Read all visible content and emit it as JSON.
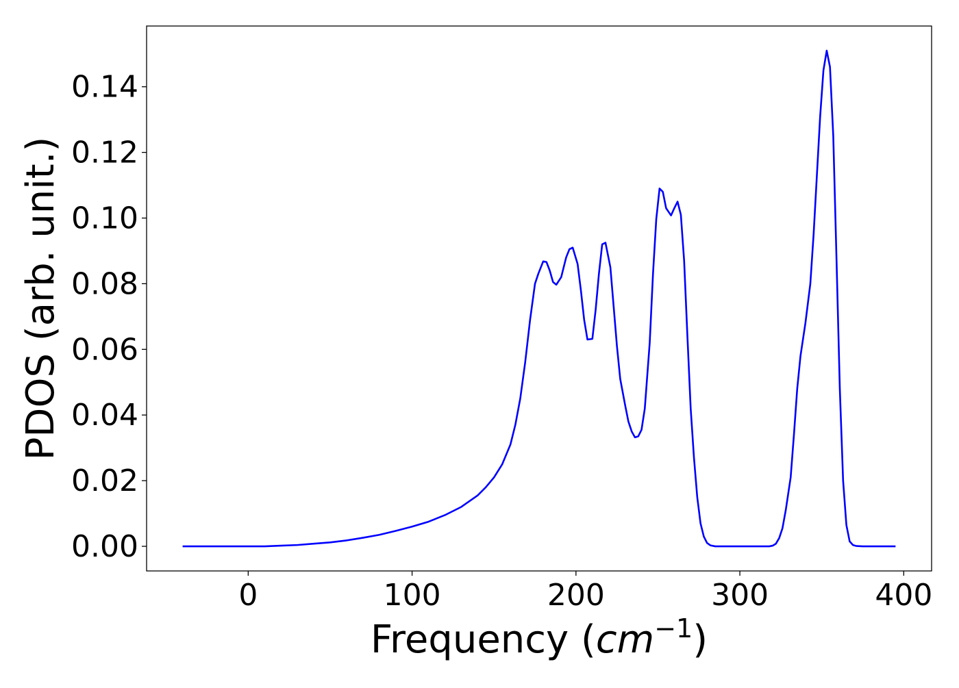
{
  "chart_data": {
    "type": "line",
    "title": "",
    "xlabel": "Frequency ",
    "xlabel_italic": "cm",
    "xlabel_superscript": "−1",
    "xlabel_open": "(",
    "xlabel_close": ")",
    "ylabel": "PDOS (arb. unit.)",
    "xlim": [
      -62,
      417
    ],
    "ylim": [
      -0.0075,
      0.1585
    ],
    "grid": false,
    "legend": "none",
    "x_ticks": [
      0,
      100,
      200,
      300,
      400
    ],
    "x_tick_labels": [
      "0",
      "100",
      "200",
      "300",
      "400"
    ],
    "y_ticks": [
      0.0,
      0.02,
      0.04,
      0.06,
      0.08,
      0.1,
      0.12,
      0.14
    ],
    "y_tick_labels": [
      "0.00",
      "0.02",
      "0.04",
      "0.06",
      "0.08",
      "0.10",
      "0.12",
      "0.14"
    ],
    "series": [
      {
        "color": "#0000ff",
        "x": [
          -40,
          -20,
          0,
          10,
          20,
          30,
          40,
          50,
          60,
          70,
          80,
          90,
          100,
          110,
          120,
          130,
          140,
          145,
          150,
          155,
          160,
          163,
          166,
          169,
          172,
          175,
          177,
          180,
          182,
          184,
          186,
          188,
          191,
          194,
          196,
          198,
          201,
          203,
          205,
          207,
          210,
          212,
          214,
          216,
          218,
          221,
          223,
          225,
          227,
          230,
          232,
          234,
          236,
          238,
          240,
          242,
          245,
          247,
          249,
          251,
          253,
          255,
          258,
          260,
          262,
          264,
          266,
          268,
          270,
          272,
          274,
          276,
          278,
          280,
          282,
          285,
          290,
          300,
          310,
          318,
          320,
          322,
          324,
          326,
          328,
          331,
          333,
          335,
          337,
          340,
          343,
          345,
          347,
          349,
          351,
          353,
          355,
          357,
          359,
          361,
          363,
          365,
          367,
          369,
          371,
          375,
          385,
          395
        ],
        "y": [
          0,
          0,
          0,
          0,
          0.0002,
          0.0004,
          0.0008,
          0.0012,
          0.0018,
          0.0026,
          0.0035,
          0.0047,
          0.006,
          0.0075,
          0.0095,
          0.012,
          0.0155,
          0.018,
          0.021,
          0.025,
          0.031,
          0.037,
          0.045,
          0.056,
          0.069,
          0.08,
          0.083,
          0.0868,
          0.0866,
          0.084,
          0.0805,
          0.0797,
          0.082,
          0.088,
          0.0905,
          0.091,
          0.086,
          0.078,
          0.069,
          0.063,
          0.0632,
          0.072,
          0.083,
          0.092,
          0.0925,
          0.085,
          0.073,
          0.061,
          0.051,
          0.043,
          0.038,
          0.035,
          0.0332,
          0.0335,
          0.0355,
          0.042,
          0.062,
          0.083,
          0.0997,
          0.109,
          0.108,
          0.103,
          0.1008,
          0.103,
          0.105,
          0.101,
          0.087,
          0.064,
          0.042,
          0.027,
          0.015,
          0.007,
          0.003,
          0.001,
          0.0003,
          0,
          0,
          0,
          0,
          0,
          0.0002,
          0.0008,
          0.0025,
          0.0055,
          0.011,
          0.021,
          0.034,
          0.048,
          0.058,
          0.068,
          0.08,
          0.095,
          0.113,
          0.131,
          0.145,
          0.151,
          0.146,
          0.125,
          0.087,
          0.048,
          0.02,
          0.0065,
          0.0015,
          0.0004,
          0.0001,
          0,
          0,
          0
        ]
      }
    ]
  }
}
